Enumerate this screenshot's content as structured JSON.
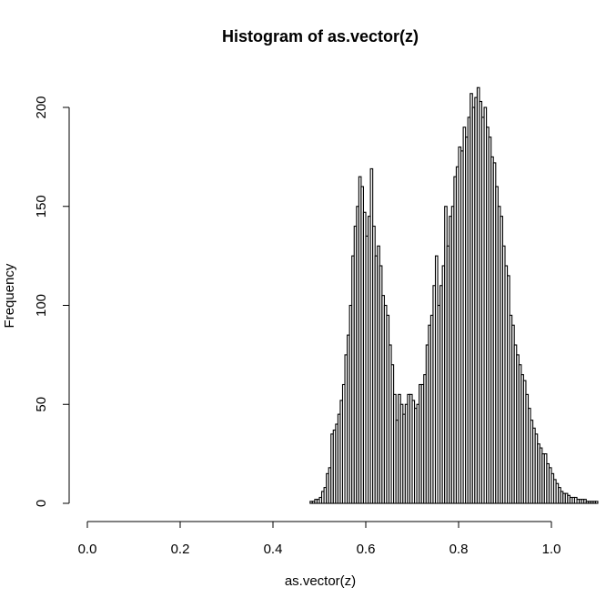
{
  "chart_data": {
    "type": "bar",
    "title": "Histogram of as.vector(z)",
    "xlabel": "as.vector(z)",
    "ylabel": "Frequency",
    "xlim": [
      0,
      1
    ],
    "ylim": [
      0,
      210
    ],
    "x_ticks": [
      0,
      0.2,
      0.4,
      0.6,
      0.8,
      1
    ],
    "x_tick_labels": [
      "0.0",
      "0.2",
      "0.4",
      "0.6",
      "0.8",
      "1.0"
    ],
    "y_ticks": [
      0,
      50,
      100,
      150,
      200
    ],
    "y_tick_labels": [
      "0",
      "50",
      "100",
      "150",
      "200"
    ],
    "bin_width": 0.005,
    "bin_start": 0,
    "grid": false,
    "legend": "none",
    "colors": {
      "bar_fill": "#ffffff",
      "bar_stroke": "#000000",
      "axis": "#000000"
    },
    "values": [
      0,
      0,
      0,
      0,
      0,
      0,
      0,
      0,
      0,
      0,
      0,
      0,
      0,
      0,
      0,
      0,
      0,
      0,
      0,
      0,
      0,
      0,
      0,
      0,
      0,
      0,
      0,
      0,
      0,
      0,
      0,
      0,
      0,
      0,
      0,
      0,
      0,
      0,
      0,
      0,
      0,
      0,
      0,
      0,
      0,
      0,
      0,
      0,
      0,
      0,
      0,
      0,
      0,
      0,
      0,
      0,
      0,
      0,
      0,
      0,
      0,
      0,
      0,
      0,
      0,
      0,
      0,
      0,
      0,
      0,
      0,
      0,
      0,
      0,
      0,
      0,
      0,
      0,
      0,
      0,
      0,
      0,
      0,
      0,
      0,
      0,
      0,
      0,
      0,
      0,
      0,
      0,
      0,
      0,
      0,
      0,
      1,
      1,
      2,
      2,
      3,
      6,
      8,
      15,
      18,
      35,
      37,
      40,
      45,
      52,
      60,
      75,
      85,
      100,
      125,
      140,
      150,
      165,
      160,
      147,
      135,
      145,
      169,
      140,
      125,
      130,
      120,
      105,
      100,
      95,
      80,
      70,
      55,
      42,
      55,
      50,
      45,
      50,
      55,
      55,
      52,
      48,
      50,
      60,
      60,
      65,
      80,
      90,
      95,
      110,
      125,
      100,
      110,
      120,
      150,
      130,
      145,
      150,
      165,
      170,
      180,
      178,
      190,
      185,
      195,
      207,
      200,
      205,
      210,
      203,
      195,
      200,
      190,
      185,
      175,
      172,
      160,
      150,
      145,
      130,
      120,
      115,
      95,
      90,
      80,
      75,
      70,
      65,
      62,
      55,
      48,
      42,
      38,
      35,
      30,
      28,
      25,
      25,
      20,
      18,
      15,
      12,
      10,
      8,
      6,
      5,
      5,
      4,
      3,
      3,
      3,
      2,
      2,
      2,
      2,
      1,
      1,
      1,
      1,
      1
    ]
  }
}
